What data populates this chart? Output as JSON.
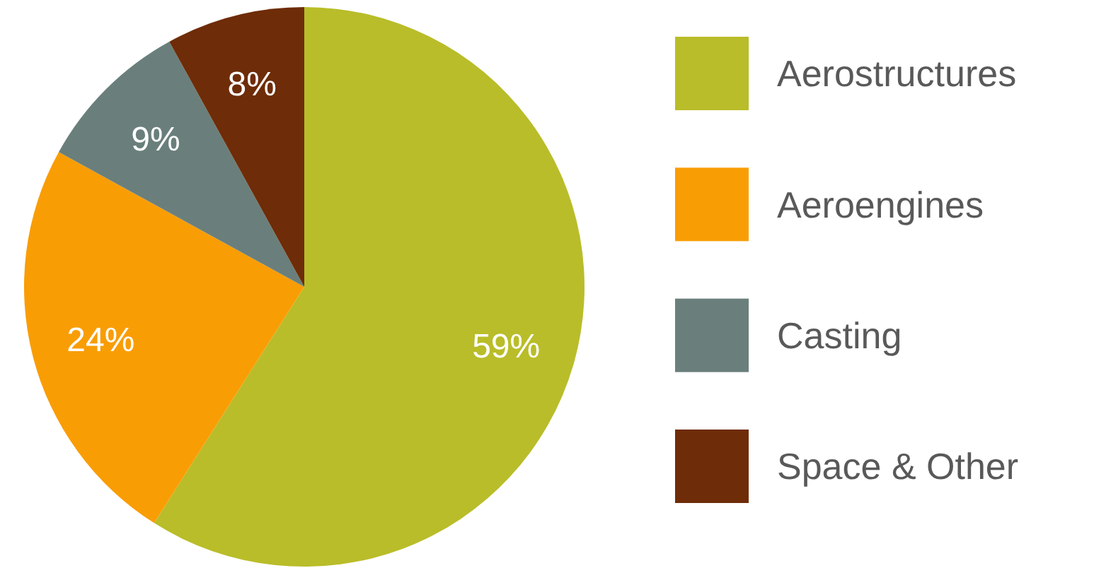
{
  "chart_data": {
    "type": "pie",
    "categories": [
      "Aerostructures",
      "Aeroengines",
      "Casting",
      "Space & Other"
    ],
    "values": [
      59,
      24,
      9,
      8
    ],
    "colors": [
      "#b9bd29",
      "#f99d05",
      "#6a7f7b",
      "#6e2c08"
    ],
    "value_labels": [
      "59%",
      "24%",
      "9%",
      "8%"
    ],
    "legend": "right"
  }
}
